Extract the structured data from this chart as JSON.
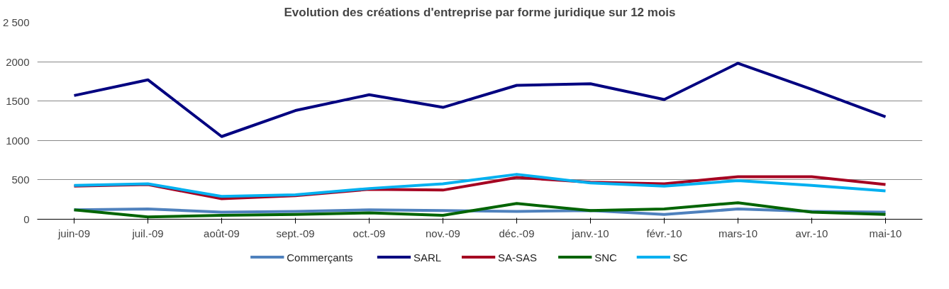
{
  "chart_data": {
    "type": "line",
    "title": "Evolution des créations d'entreprise par forme juridique sur 12 mois",
    "categories": [
      "juin-09",
      "juil.-09",
      "août-09",
      "sept.-09",
      "oct.-09",
      "nov.-09",
      "déc.-09",
      "janv.-10",
      "févr.-10",
      "mars-10",
      "avr.-10",
      "mai-10"
    ],
    "series": [
      {
        "name": "Commerçants",
        "color": "#4f81bd",
        "values": [
          120,
          130,
          90,
          100,
          120,
          110,
          100,
          110,
          60,
          130,
          100,
          90
        ]
      },
      {
        "name": "SARL",
        "color": "#000080",
        "values": [
          1570,
          1770,
          1050,
          1380,
          1580,
          1420,
          1700,
          1720,
          1520,
          1980,
          1650,
          1300
        ]
      },
      {
        "name": "SA-SAS",
        "color": "#a50021",
        "values": [
          420,
          440,
          260,
          300,
          380,
          370,
          530,
          470,
          450,
          540,
          540,
          440
        ]
      },
      {
        "name": "SNC",
        "color": "#006400",
        "values": [
          120,
          30,
          50,
          60,
          80,
          50,
          200,
          110,
          130,
          210,
          90,
          60
        ]
      },
      {
        "name": "SC",
        "color": "#00b0f0",
        "values": [
          430,
          450,
          290,
          310,
          390,
          450,
          570,
          460,
          420,
          490,
          430,
          360
        ]
      }
    ],
    "ylim": [
      0,
      2500
    ],
    "yticks": [
      0,
      500,
      1000,
      1500,
      2000,
      {
        "value": 2500,
        "label": "2 500"
      }
    ],
    "grid": "y",
    "legend": "bottom",
    "marker": "none",
    "line_style": "solid"
  }
}
